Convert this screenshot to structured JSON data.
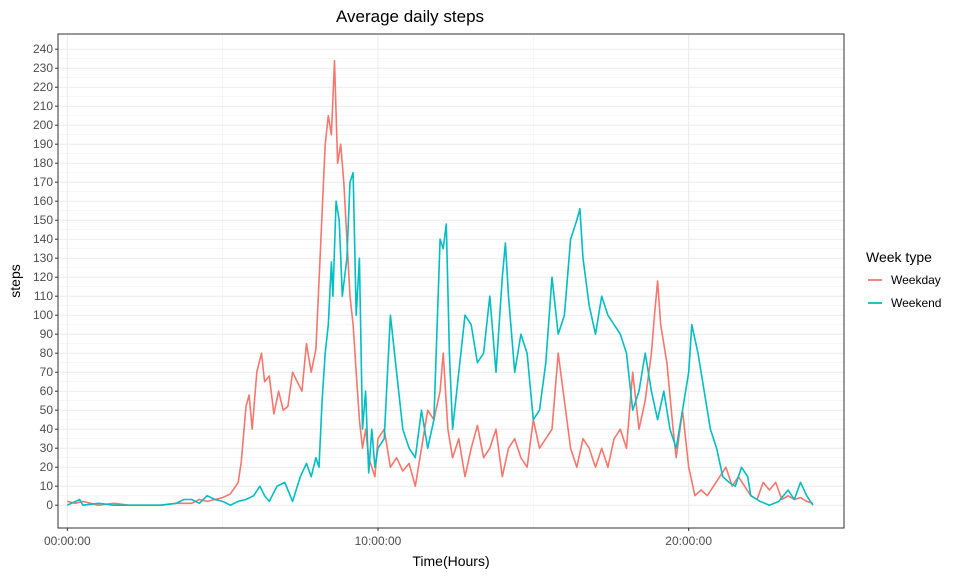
{
  "chart_data": {
    "type": "line",
    "title": "Average daily steps",
    "xlabel": "Time(Hours)",
    "ylabel": "steps",
    "xlim": [
      0,
      24
    ],
    "ylim": [
      0,
      240
    ],
    "x_unit": "hours",
    "x_ticks": [
      {
        "value": 0,
        "label": "00:00:00"
      },
      {
        "value": 10,
        "label": "10:00:00"
      },
      {
        "value": 20,
        "label": "20:00:00"
      }
    ],
    "y_ticks": [
      0,
      10,
      20,
      30,
      40,
      50,
      60,
      70,
      80,
      90,
      100,
      110,
      120,
      130,
      140,
      150,
      160,
      170,
      180,
      190,
      200,
      210,
      220,
      230,
      240
    ],
    "grid": true,
    "legend": {
      "title": "Week type",
      "position": "right"
    },
    "series": [
      {
        "name": "Weekday",
        "color": "#F8766D",
        "points": [
          [
            0,
            2
          ],
          [
            0.25,
            1
          ],
          [
            0.5,
            2
          ],
          [
            0.75,
            1
          ],
          [
            1,
            0
          ],
          [
            1.5,
            1
          ],
          [
            2,
            0
          ],
          [
            2.5,
            0
          ],
          [
            3,
            0
          ],
          [
            3.5,
            1
          ],
          [
            4,
            1
          ],
          [
            4.25,
            3
          ],
          [
            4.5,
            2
          ],
          [
            4.75,
            3
          ],
          [
            5,
            4
          ],
          [
            5.25,
            6
          ],
          [
            5.5,
            12
          ],
          [
            5.6,
            23
          ],
          [
            5.75,
            52
          ],
          [
            5.85,
            58
          ],
          [
            5.95,
            40
          ],
          [
            6.1,
            70
          ],
          [
            6.25,
            80
          ],
          [
            6.35,
            65
          ],
          [
            6.5,
            68
          ],
          [
            6.65,
            48
          ],
          [
            6.8,
            60
          ],
          [
            6.95,
            50
          ],
          [
            7.1,
            52
          ],
          [
            7.25,
            70
          ],
          [
            7.4,
            65
          ],
          [
            7.55,
            60
          ],
          [
            7.7,
            85
          ],
          [
            7.85,
            70
          ],
          [
            8,
            82
          ],
          [
            8.15,
            135
          ],
          [
            8.3,
            190
          ],
          [
            8.4,
            205
          ],
          [
            8.5,
            195
          ],
          [
            8.6,
            234
          ],
          [
            8.7,
            180
          ],
          [
            8.8,
            190
          ],
          [
            8.9,
            170
          ],
          [
            9,
            140
          ],
          [
            9.1,
            110
          ],
          [
            9.2,
            95
          ],
          [
            9.3,
            70
          ],
          [
            9.4,
            45
          ],
          [
            9.5,
            30
          ],
          [
            9.6,
            40
          ],
          [
            9.7,
            25
          ],
          [
            9.8,
            20
          ],
          [
            9.9,
            15
          ],
          [
            10,
            35
          ],
          [
            10.2,
            40
          ],
          [
            10.4,
            20
          ],
          [
            10.6,
            25
          ],
          [
            10.8,
            18
          ],
          [
            11,
            22
          ],
          [
            11.2,
            10
          ],
          [
            11.4,
            30
          ],
          [
            11.6,
            50
          ],
          [
            11.8,
            45
          ],
          [
            12,
            60
          ],
          [
            12.1,
            80
          ],
          [
            12.25,
            40
          ],
          [
            12.4,
            25
          ],
          [
            12.6,
            35
          ],
          [
            12.8,
            15
          ],
          [
            13,
            30
          ],
          [
            13.2,
            42
          ],
          [
            13.4,
            25
          ],
          [
            13.6,
            30
          ],
          [
            13.8,
            40
          ],
          [
            14,
            15
          ],
          [
            14.2,
            30
          ],
          [
            14.4,
            35
          ],
          [
            14.6,
            25
          ],
          [
            14.8,
            20
          ],
          [
            15,
            45
          ],
          [
            15.2,
            30
          ],
          [
            15.4,
            35
          ],
          [
            15.6,
            40
          ],
          [
            15.8,
            80
          ],
          [
            16,
            55
          ],
          [
            16.2,
            30
          ],
          [
            16.4,
            20
          ],
          [
            16.6,
            35
          ],
          [
            16.8,
            30
          ],
          [
            17,
            20
          ],
          [
            17.2,
            30
          ],
          [
            17.4,
            20
          ],
          [
            17.6,
            35
          ],
          [
            17.8,
            40
          ],
          [
            18,
            30
          ],
          [
            18.2,
            70
          ],
          [
            18.4,
            40
          ],
          [
            18.6,
            55
          ],
          [
            18.8,
            80
          ],
          [
            18.9,
            100
          ],
          [
            19,
            118
          ],
          [
            19.1,
            95
          ],
          [
            19.3,
            75
          ],
          [
            19.5,
            40
          ],
          [
            19.6,
            25
          ],
          [
            19.8,
            50
          ],
          [
            20,
            20
          ],
          [
            20.2,
            5
          ],
          [
            20.4,
            8
          ],
          [
            20.6,
            5
          ],
          [
            20.8,
            10
          ],
          [
            21,
            15
          ],
          [
            21.2,
            20
          ],
          [
            21.4,
            10
          ],
          [
            21.6,
            15
          ],
          [
            21.8,
            10
          ],
          [
            22,
            5
          ],
          [
            22.2,
            3
          ],
          [
            22.4,
            12
          ],
          [
            22.6,
            8
          ],
          [
            22.8,
            12
          ],
          [
            23,
            3
          ],
          [
            23.2,
            5
          ],
          [
            23.4,
            3
          ],
          [
            23.6,
            4
          ],
          [
            23.8,
            2
          ],
          [
            24,
            1
          ]
        ]
      },
      {
        "name": "Weekend",
        "color": "#00BFC4",
        "points": [
          [
            0,
            0
          ],
          [
            0.4,
            3
          ],
          [
            0.5,
            0
          ],
          [
            1,
            1
          ],
          [
            1.5,
            0
          ],
          [
            2,
            0
          ],
          [
            2.5,
            0
          ],
          [
            3,
            0
          ],
          [
            3.5,
            1
          ],
          [
            3.75,
            3
          ],
          [
            4,
            3
          ],
          [
            4.25,
            1
          ],
          [
            4.5,
            5
          ],
          [
            4.75,
            3
          ],
          [
            5,
            2
          ],
          [
            5.25,
            0
          ],
          [
            5.5,
            2
          ],
          [
            5.75,
            3
          ],
          [
            6,
            5
          ],
          [
            6.2,
            10
          ],
          [
            6.35,
            5
          ],
          [
            6.5,
            2
          ],
          [
            6.75,
            10
          ],
          [
            7,
            12
          ],
          [
            7.25,
            2
          ],
          [
            7.5,
            15
          ],
          [
            7.7,
            22
          ],
          [
            7.85,
            15
          ],
          [
            8,
            25
          ],
          [
            8.1,
            20
          ],
          [
            8.2,
            55
          ],
          [
            8.3,
            80
          ],
          [
            8.4,
            95
          ],
          [
            8.5,
            128
          ],
          [
            8.55,
            110
          ],
          [
            8.65,
            160
          ],
          [
            8.75,
            150
          ],
          [
            8.85,
            110
          ],
          [
            9,
            130
          ],
          [
            9.1,
            170
          ],
          [
            9.2,
            175
          ],
          [
            9.3,
            100
          ],
          [
            9.4,
            130
          ],
          [
            9.5,
            40
          ],
          [
            9.6,
            60
          ],
          [
            9.7,
            17
          ],
          [
            9.8,
            40
          ],
          [
            9.9,
            20
          ],
          [
            10,
            30
          ],
          [
            10.2,
            35
          ],
          [
            10.4,
            100
          ],
          [
            10.6,
            70
          ],
          [
            10.8,
            40
          ],
          [
            11,
            30
          ],
          [
            11.2,
            25
          ],
          [
            11.4,
            50
          ],
          [
            11.6,
            30
          ],
          [
            11.8,
            45
          ],
          [
            12,
            140
          ],
          [
            12.1,
            135
          ],
          [
            12.2,
            148
          ],
          [
            12.3,
            80
          ],
          [
            12.4,
            40
          ],
          [
            12.6,
            70
          ],
          [
            12.8,
            100
          ],
          [
            13,
            95
          ],
          [
            13.2,
            75
          ],
          [
            13.4,
            80
          ],
          [
            13.6,
            110
          ],
          [
            13.8,
            70
          ],
          [
            14,
            120
          ],
          [
            14.1,
            138
          ],
          [
            14.2,
            110
          ],
          [
            14.4,
            70
          ],
          [
            14.6,
            90
          ],
          [
            14.8,
            80
          ],
          [
            15,
            45
          ],
          [
            15.2,
            50
          ],
          [
            15.4,
            75
          ],
          [
            15.6,
            120
          ],
          [
            15.8,
            90
          ],
          [
            16,
            100
          ],
          [
            16.2,
            140
          ],
          [
            16.4,
            150
          ],
          [
            16.5,
            156
          ],
          [
            16.6,
            130
          ],
          [
            16.8,
            105
          ],
          [
            17,
            90
          ],
          [
            17.2,
            110
          ],
          [
            17.4,
            100
          ],
          [
            17.6,
            95
          ],
          [
            17.8,
            90
          ],
          [
            18,
            80
          ],
          [
            18.2,
            50
          ],
          [
            18.4,
            60
          ],
          [
            18.6,
            80
          ],
          [
            18.8,
            60
          ],
          [
            19,
            45
          ],
          [
            19.2,
            60
          ],
          [
            19.4,
            40
          ],
          [
            19.6,
            30
          ],
          [
            19.8,
            50
          ],
          [
            20,
            70
          ],
          [
            20.1,
            95
          ],
          [
            20.3,
            80
          ],
          [
            20.5,
            60
          ],
          [
            20.7,
            40
          ],
          [
            20.9,
            30
          ],
          [
            21.1,
            15
          ],
          [
            21.3,
            12
          ],
          [
            21.5,
            10
          ],
          [
            21.7,
            20
          ],
          [
            21.9,
            15
          ],
          [
            22,
            5
          ],
          [
            22.3,
            2
          ],
          [
            22.6,
            0
          ],
          [
            22.9,
            2
          ],
          [
            23.2,
            8
          ],
          [
            23.4,
            3
          ],
          [
            23.6,
            12
          ],
          [
            23.8,
            5
          ],
          [
            24,
            0
          ]
        ]
      }
    ]
  }
}
